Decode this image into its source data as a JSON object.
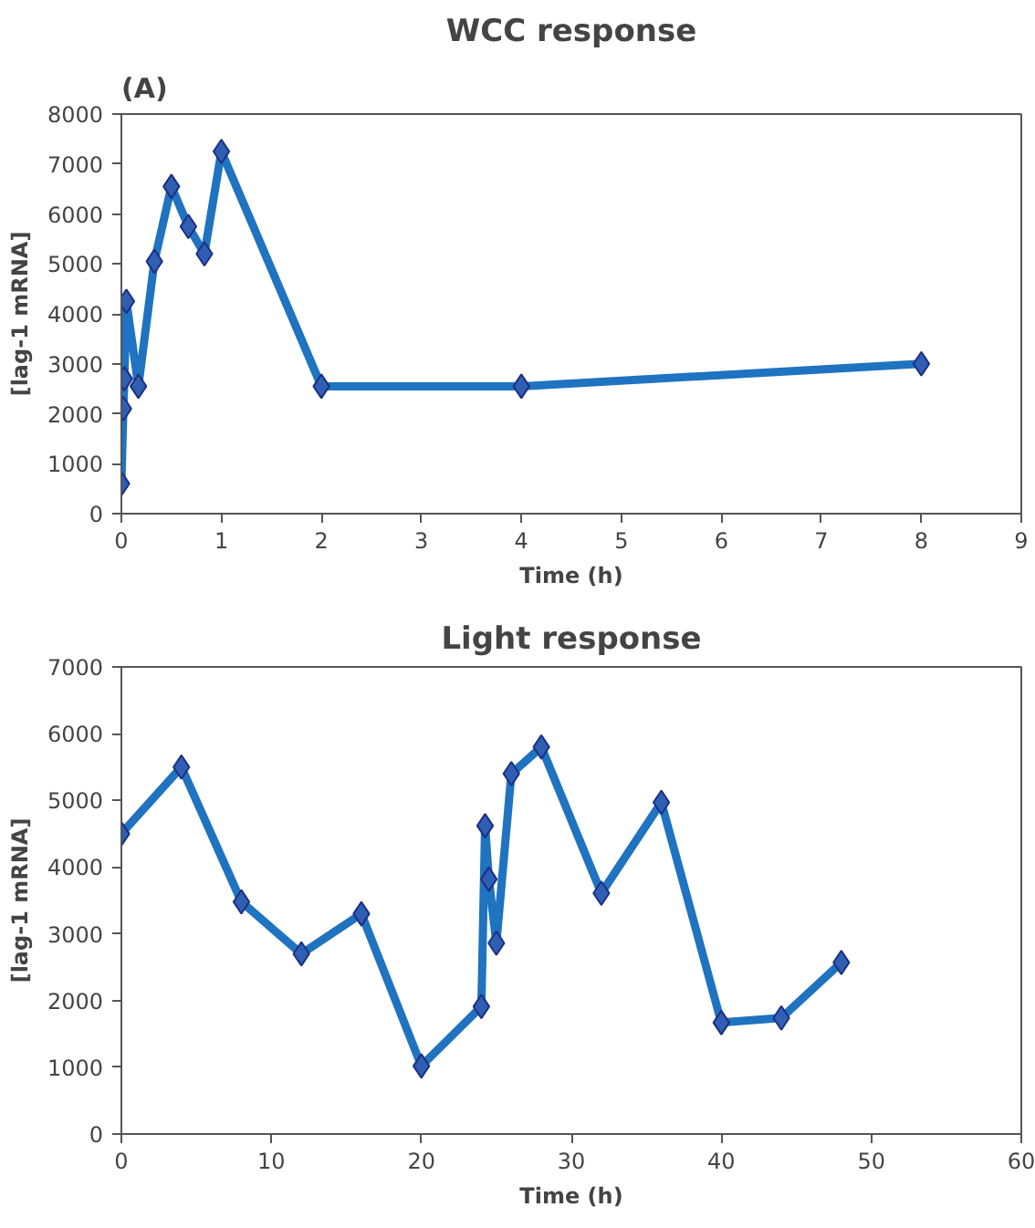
{
  "chart_data": [
    {
      "type": "line",
      "title": "WCC response",
      "xlabel": "Time (h)",
      "ylabel": "[lag-1 mRNA]",
      "annotations": [
        "(A)"
      ],
      "x": [
        0,
        0.02,
        0.03,
        0.05,
        0.17,
        0.33,
        0.5,
        0.67,
        0.83,
        1,
        2,
        4,
        8
      ],
      "series": [
        {
          "color": "#1f73c0",
          "values": [
            600,
            2100,
            2700,
            4250,
            2550,
            5050,
            6550,
            5750,
            5200,
            7250,
            2550,
            2550,
            3000
          ]
        }
      ],
      "xlim": [
        0,
        9
      ],
      "ylim": [
        0,
        8000
      ],
      "xticks": [
        0,
        1,
        2,
        3,
        4,
        5,
        6,
        7,
        8,
        9
      ],
      "yticks": [
        0,
        1000,
        2000,
        3000,
        4000,
        5000,
        6000,
        7000,
        8000
      ],
      "marker": "diamond",
      "grid": false
    },
    {
      "type": "line",
      "title": "Light response",
      "xlabel": "Time (h)",
      "ylabel": "[lag-1 mRNA]",
      "x": [
        0,
        4,
        8,
        12,
        16,
        20,
        24,
        24.25,
        24.5,
        25,
        26,
        28,
        32,
        36,
        40,
        44,
        48
      ],
      "series": [
        {
          "color": "#1f73c0",
          "values": [
            4500,
            5500,
            3480,
            2700,
            3300,
            1020,
            1910,
            4620,
            3820,
            2860,
            5400,
            5800,
            3610,
            4970,
            1670,
            1740,
            2570
          ]
        }
      ],
      "xlim": [
        0,
        60
      ],
      "ylim": [
        0,
        7000
      ],
      "xticks": [
        0,
        10,
        20,
        30,
        40,
        50,
        60
      ],
      "yticks": [
        0,
        1000,
        2000,
        3000,
        4000,
        5000,
        6000,
        7000
      ],
      "marker": "diamond",
      "grid": false
    }
  ]
}
